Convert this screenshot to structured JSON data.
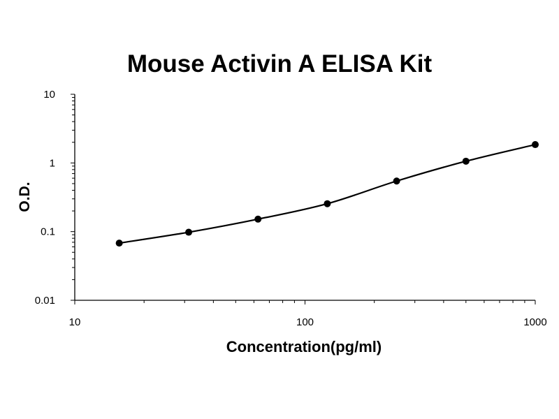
{
  "chart_data": {
    "type": "scatter",
    "title": "Mouse Activin A ELISA Kit",
    "xlabel": "Concentration(pg/ml)",
    "ylabel": "O.D.",
    "x_scale": "log",
    "y_scale": "log",
    "xlim": [
      10,
      1000
    ],
    "ylim": [
      0.01,
      10
    ],
    "x_ticks": [
      "10",
      "100",
      "1000"
    ],
    "y_ticks": [
      "10",
      "1",
      "0.1",
      "0.01"
    ],
    "grid": false,
    "legend": "none",
    "series": [
      {
        "x": [
          15.6,
          31.25,
          62.5,
          125,
          250,
          500,
          1000
        ],
        "y": [
          0.068,
          0.098,
          0.152,
          0.255,
          0.545,
          1.06,
          1.85
        ],
        "marker": "circle",
        "fit_line": true
      }
    ]
  },
  "colors": {
    "series": "#000000",
    "axis": "#000000",
    "background": "#ffffff"
  }
}
